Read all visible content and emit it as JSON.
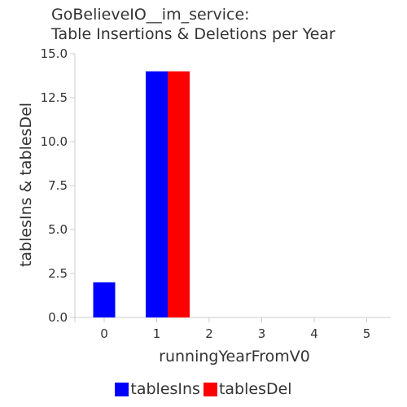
{
  "chart_data": {
    "type": "bar",
    "title_lines": [
      "GoBelieveIO__im_service:",
      "Table Insertions & Deletions per Year"
    ],
    "xlabel": "runningYearFromV0",
    "ylabel": "tablesIns & tablesDel",
    "categories": [
      "0",
      "1",
      "2",
      "3",
      "4",
      "5"
    ],
    "series": [
      {
        "name": "tablesIns",
        "color": "#0000ff",
        "values": [
          2,
          14,
          0,
          0,
          0,
          0
        ]
      },
      {
        "name": "tablesDel",
        "color": "#ff0000",
        "values": [
          0,
          14,
          0,
          0,
          0,
          0
        ]
      }
    ],
    "ylim": [
      0,
      15
    ],
    "yticks": [
      "0.0",
      "2.5",
      "5.0",
      "7.5",
      "10.0",
      "12.5",
      "15.0"
    ],
    "grid": false,
    "legend_position": "bottom"
  }
}
